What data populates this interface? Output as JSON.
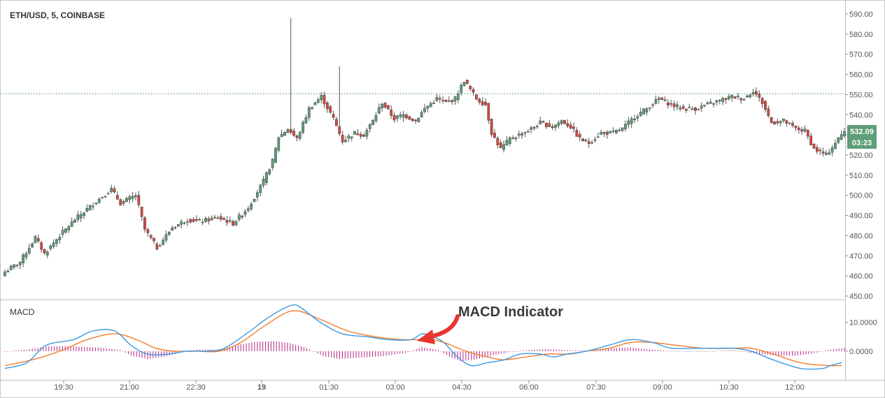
{
  "header": {
    "symbol_label": "ETH/USD, 5, COINBASE"
  },
  "macd_pane": {
    "label": "MACD"
  },
  "annotation": {
    "text": "MACD Indicator",
    "arrow_color": "#e8342e"
  },
  "price_badge": {
    "price": "532.09",
    "countdown": "03:23",
    "color": "#5f9e77"
  },
  "colors": {
    "up_candle": "#5d9e76",
    "down_candle": "#d7473e",
    "wick": "#535353",
    "macd_line": "#3c9ae3",
    "signal_line": "#f37d2a",
    "histogram": "#b3237e",
    "hline": "#3d8b5e",
    "grid_border": "#c8c8c8",
    "axis_text": "#555555"
  },
  "chart_data": [
    {
      "type": "candlestick",
      "title": "ETH/USD, 5, COINBASE",
      "x_tick_labels": [
        "19:30",
        "21:00",
        "22:30",
        "19",
        "01:30",
        "03:00",
        "04:30",
        "06:00",
        "07:30",
        "09:00",
        "10:30",
        "12:00"
      ],
      "y_tick_labels": [
        "590.00",
        "580.00",
        "570.00",
        "560.00",
        "550.00",
        "540.00",
        "530.00",
        "520.00",
        "510.00",
        "500.00",
        "490.00",
        "480.00",
        "470.00",
        "460.00",
        "450.00"
      ],
      "ylim": [
        449,
        592
      ],
      "horizontal_line": 550.4,
      "last_price": 532.09,
      "grid": false,
      "anchors": [
        [
          0,
          462
        ],
        [
          5,
          467
        ],
        [
          10,
          479
        ],
        [
          13,
          471
        ],
        [
          18,
          480
        ],
        [
          23,
          488
        ],
        [
          30,
          497
        ],
        [
          35,
          503
        ],
        [
          38,
          496
        ],
        [
          43,
          500
        ],
        [
          46,
          483
        ],
        [
          50,
          474
        ],
        [
          55,
          484
        ],
        [
          60,
          488
        ],
        [
          64,
          487
        ],
        [
          70,
          489
        ],
        [
          75,
          486
        ],
        [
          80,
          494
        ],
        [
          85,
          507
        ],
        [
          88,
          517
        ],
        [
          90,
          529
        ],
        [
          93,
          533
        ],
        [
          96,
          528
        ],
        [
          100,
          543
        ],
        [
          104,
          549
        ],
        [
          108,
          538
        ],
        [
          111,
          527
        ],
        [
          115,
          531
        ],
        [
          118,
          530
        ],
        [
          121,
          537
        ],
        [
          124,
          546
        ],
        [
          128,
          538
        ],
        [
          131,
          540
        ],
        [
          135,
          537
        ],
        [
          138,
          543
        ],
        [
          142,
          548
        ],
        [
          145,
          546
        ],
        [
          148,
          548
        ],
        [
          151,
          557
        ],
        [
          155,
          548
        ],
        [
          158,
          545
        ],
        [
          160,
          531
        ],
        [
          163,
          523
        ],
        [
          166,
          528
        ],
        [
          169,
          530
        ],
        [
          172,
          532
        ],
        [
          176,
          536
        ],
        [
          180,
          534
        ],
        [
          183,
          537
        ],
        [
          186,
          534
        ],
        [
          189,
          528
        ],
        [
          192,
          526
        ],
        [
          196,
          531
        ],
        [
          200,
          531
        ],
        [
          203,
          533
        ],
        [
          207,
          539
        ],
        [
          211,
          543
        ],
        [
          215,
          548
        ],
        [
          219,
          545
        ],
        [
          223,
          543
        ],
        [
          227,
          543
        ],
        [
          231,
          545
        ],
        [
          235,
          547
        ],
        [
          239,
          549
        ],
        [
          243,
          548
        ],
        [
          246,
          552
        ],
        [
          249,
          546
        ],
        [
          252,
          536
        ],
        [
          256,
          537
        ],
        [
          260,
          533
        ],
        [
          263,
          532
        ],
        [
          266,
          523
        ],
        [
          270,
          520
        ],
        [
          273,
          526
        ],
        [
          276,
          532
        ]
      ],
      "candle_count": 277
    },
    {
      "type": "line",
      "title": "MACD",
      "y_tick_labels": [
        "10.0000",
        "0.0000"
      ],
      "ylim": [
        -8.5,
        16.2
      ],
      "series": [
        {
          "key": "macd",
          "points": [
            [
              0,
              -6
            ],
            [
              8,
              -4
            ],
            [
              15,
              2
            ],
            [
              25,
              4
            ],
            [
              32,
              7
            ],
            [
              40,
              7
            ],
            [
              46,
              2
            ],
            [
              52,
              -1
            ],
            [
              60,
              -1
            ],
            [
              66,
              0
            ],
            [
              74,
              0
            ],
            [
              80,
              1
            ],
            [
              88,
              6
            ],
            [
              95,
              11
            ],
            [
              100,
              14
            ],
            [
              105,
              16
            ],
            [
              108,
              15
            ],
            [
              115,
              10
            ],
            [
              123,
              6
            ],
            [
              132,
              5
            ],
            [
              140,
              4
            ],
            [
              148,
              4
            ],
            [
              152,
              6
            ],
            [
              156,
              5
            ],
            [
              160,
              3
            ],
            [
              165,
              -2
            ],
            [
              170,
              -5
            ],
            [
              176,
              -4
            ],
            [
              182,
              -3
            ],
            [
              188,
              -1
            ],
            [
              195,
              -1
            ],
            [
              200,
              -2
            ],
            [
              205,
              -1
            ],
            [
              212,
              0
            ],
            [
              220,
              2
            ],
            [
              228,
              4
            ],
            [
              236,
              3
            ],
            [
              243,
              1
            ],
            [
              252,
              1
            ],
            [
              260,
              1
            ],
            [
              266,
              1
            ],
            [
              272,
              0
            ],
            [
              280,
              -3
            ],
            [
              290,
              -6
            ],
            [
              298,
              -6
            ],
            [
              301,
              -5
            ],
            [
              305,
              -4
            ]
          ]
        },
        {
          "key": "signal",
          "points": [
            [
              0,
              -5
            ],
            [
              10,
              -3
            ],
            [
              20,
              0
            ],
            [
              30,
              4
            ],
            [
              40,
              6
            ],
            [
              48,
              4
            ],
            [
              55,
              1
            ],
            [
              62,
              0
            ],
            [
              70,
              0
            ],
            [
              78,
              0
            ],
            [
              86,
              3
            ],
            [
              95,
              9
            ],
            [
              105,
              14
            ],
            [
              115,
              11
            ],
            [
              125,
              7
            ],
            [
              135,
              5
            ],
            [
              145,
              4
            ],
            [
              155,
              4
            ],
            [
              160,
              3
            ],
            [
              168,
              0
            ],
            [
              176,
              -2
            ],
            [
              182,
              -3
            ],
            [
              190,
              -2
            ],
            [
              198,
              -1
            ],
            [
              206,
              -1
            ],
            [
              212,
              0
            ],
            [
              220,
              1
            ],
            [
              228,
              3
            ],
            [
              236,
              3
            ],
            [
              245,
              2
            ],
            [
              255,
              1
            ],
            [
              265,
              1
            ],
            [
              272,
              1
            ],
            [
              280,
              -1
            ],
            [
              290,
              -4
            ],
            [
              300,
              -5
            ],
            [
              305,
              -5
            ]
          ]
        },
        {
          "key": "histogram",
          "points": [
            [
              0,
              0
            ],
            [
              8,
              0.5
            ],
            [
              15,
              1.6
            ],
            [
              22,
              1.8
            ],
            [
              28,
              1.5
            ],
            [
              35,
              1.2
            ],
            [
              42,
              0.4
            ],
            [
              46,
              -1.5
            ],
            [
              52,
              -2.7
            ],
            [
              58,
              -1.9
            ],
            [
              64,
              -0.6
            ],
            [
              70,
              0.5
            ],
            [
              78,
              0.6
            ],
            [
              86,
              2.4
            ],
            [
              92,
              3.3
            ],
            [
              98,
              3.5
            ],
            [
              104,
              2.8
            ],
            [
              110,
              1.1
            ],
            [
              116,
              -1.7
            ],
            [
              122,
              -2.7
            ],
            [
              130,
              -2.2
            ],
            [
              138,
              -1.7
            ],
            [
              146,
              -0.6
            ],
            [
              152,
              1.4
            ],
            [
              158,
              0.4
            ],
            [
              162,
              -1.9
            ],
            [
              166,
              -3.5
            ],
            [
              172,
              -2.8
            ],
            [
              178,
              -1.4
            ],
            [
              184,
              -0.3
            ],
            [
              190,
              0.4
            ],
            [
              198,
              0.7
            ],
            [
              206,
              0.3
            ],
            [
              212,
              0.2
            ],
            [
              220,
              0.9
            ],
            [
              228,
              1.3
            ],
            [
              234,
              0.7
            ],
            [
              242,
              0.1
            ],
            [
              250,
              -0.2
            ],
            [
              258,
              0.1
            ],
            [
              266,
              0.3
            ],
            [
              272,
              -0.6
            ],
            [
              280,
              -1.5
            ],
            [
              288,
              -1.6
            ],
            [
              294,
              -0.9
            ],
            [
              300,
              0.4
            ],
            [
              306,
              1.1
            ]
          ]
        }
      ]
    }
  ]
}
